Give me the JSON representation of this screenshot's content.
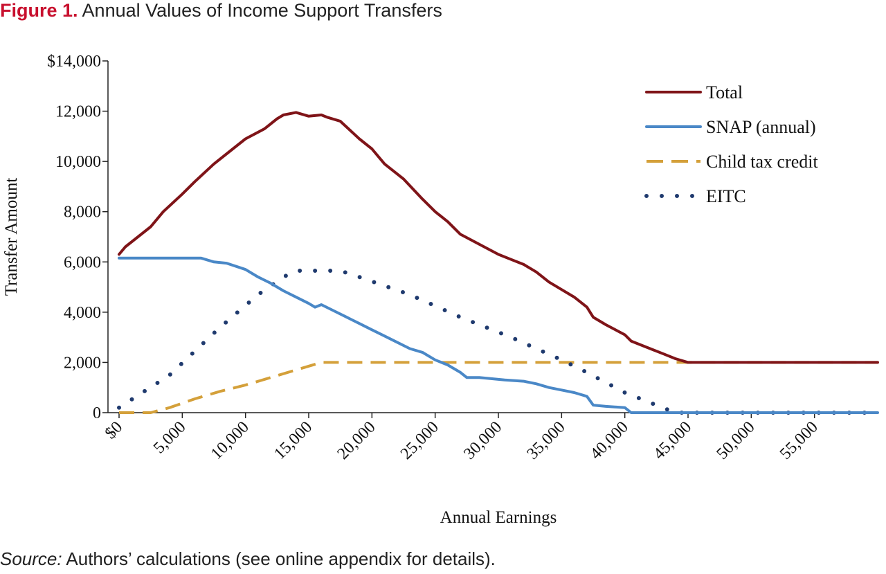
{
  "figure": {
    "label": "Figure 1.",
    "title": "Annual Values of Income Support Transfers",
    "source_lead": "Source:",
    "source_text": " Authors’ calculations (see online appendix for details)."
  },
  "chart_data": {
    "type": "line",
    "xlabel": "Annual Earnings",
    "ylabel": "Transfer Amount",
    "xlim": [
      0,
      60000
    ],
    "ylim": [
      0,
      14000
    ],
    "x_ticks": [
      0,
      5000,
      10000,
      15000,
      20000,
      25000,
      30000,
      35000,
      40000,
      45000,
      50000,
      55000
    ],
    "x_tick_labels": [
      "$0",
      "5,000",
      "10,000",
      "15,000",
      "20,000",
      "25,000",
      "30,000",
      "35,000",
      "40,000",
      "45,000",
      "50,000",
      "55,000"
    ],
    "y_ticks": [
      0,
      2000,
      4000,
      6000,
      8000,
      10000,
      12000,
      14000
    ],
    "y_tick_labels": [
      "0",
      "2,000",
      "4,000",
      "6,000",
      "8,000",
      "10,000",
      "12,000",
      "$14,000"
    ],
    "grid": false,
    "legend_position": "top-right",
    "series": [
      {
        "name": "Total",
        "color": "#7f1418",
        "style": "solid",
        "points": [
          [
            0,
            6300
          ],
          [
            500,
            6600
          ],
          [
            2500,
            7400
          ],
          [
            3500,
            8000
          ],
          [
            5000,
            8700
          ],
          [
            6000,
            9200
          ],
          [
            7500,
            9900
          ],
          [
            9000,
            10500
          ],
          [
            10000,
            10900
          ],
          [
            11500,
            11300
          ],
          [
            12500,
            11700
          ],
          [
            13000,
            11850
          ],
          [
            14000,
            11950
          ],
          [
            15000,
            11800
          ],
          [
            16000,
            11850
          ],
          [
            16500,
            11750
          ],
          [
            17500,
            11600
          ],
          [
            19000,
            10900
          ],
          [
            20000,
            10500
          ],
          [
            21000,
            9900
          ],
          [
            22500,
            9300
          ],
          [
            24000,
            8500
          ],
          [
            25000,
            8000
          ],
          [
            26000,
            7600
          ],
          [
            27000,
            7100
          ],
          [
            28500,
            6700
          ],
          [
            30000,
            6300
          ],
          [
            31000,
            6100
          ],
          [
            32000,
            5900
          ],
          [
            33000,
            5600
          ],
          [
            34000,
            5200
          ],
          [
            35000,
            4900
          ],
          [
            36000,
            4600
          ],
          [
            37000,
            4200
          ],
          [
            37500,
            3800
          ],
          [
            38500,
            3500
          ],
          [
            40000,
            3100
          ],
          [
            40500,
            2850
          ],
          [
            42000,
            2550
          ],
          [
            43000,
            2350
          ],
          [
            44000,
            2150
          ],
          [
            45000,
            2000
          ],
          [
            60000,
            2000
          ]
        ]
      },
      {
        "name": "SNAP (annual)",
        "color": "#4a88c7",
        "style": "solid",
        "points": [
          [
            0,
            6150
          ],
          [
            6500,
            6150
          ],
          [
            7500,
            6000
          ],
          [
            8500,
            5950
          ],
          [
            10000,
            5700
          ],
          [
            11000,
            5400
          ],
          [
            12000,
            5150
          ],
          [
            13000,
            4850
          ],
          [
            14000,
            4600
          ],
          [
            15000,
            4350
          ],
          [
            15500,
            4200
          ],
          [
            16000,
            4300
          ],
          [
            17000,
            4050
          ],
          [
            18000,
            3800
          ],
          [
            19000,
            3550
          ],
          [
            20000,
            3300
          ],
          [
            21000,
            3050
          ],
          [
            22000,
            2800
          ],
          [
            23000,
            2550
          ],
          [
            24000,
            2400
          ],
          [
            25000,
            2100
          ],
          [
            26000,
            1900
          ],
          [
            27000,
            1600
          ],
          [
            27500,
            1400
          ],
          [
            28500,
            1400
          ],
          [
            29500,
            1350
          ],
          [
            30500,
            1300
          ],
          [
            32000,
            1250
          ],
          [
            33000,
            1150
          ],
          [
            34000,
            1000
          ],
          [
            35000,
            900
          ],
          [
            36000,
            800
          ],
          [
            37000,
            650
          ],
          [
            37500,
            300
          ],
          [
            38500,
            250
          ],
          [
            40000,
            200
          ],
          [
            40500,
            0
          ],
          [
            60000,
            0
          ]
        ]
      },
      {
        "name": "Child tax credit",
        "color": "#d4a03a",
        "style": "dashed",
        "points": [
          [
            0,
            0
          ],
          [
            2500,
            0
          ],
          [
            4000,
            200
          ],
          [
            6000,
            550
          ],
          [
            8000,
            850
          ],
          [
            10000,
            1100
          ],
          [
            12000,
            1400
          ],
          [
            14000,
            1700
          ],
          [
            16000,
            2000
          ],
          [
            60000,
            2000
          ]
        ]
      },
      {
        "name": "EITC",
        "color": "#1f3a6e",
        "style": "dotted",
        "points": [
          [
            0,
            200
          ],
          [
            4000,
            1500
          ],
          [
            8000,
            3400
          ],
          [
            11000,
            4700
          ],
          [
            13000,
            5400
          ],
          [
            14000,
            5650
          ],
          [
            17500,
            5650
          ],
          [
            19000,
            5400
          ],
          [
            23000,
            4700
          ],
          [
            27000,
            3800
          ],
          [
            31000,
            3000
          ],
          [
            35000,
            2100
          ],
          [
            37000,
            1600
          ],
          [
            40000,
            800
          ],
          [
            42000,
            400
          ],
          [
            44000,
            0
          ],
          [
            60000,
            0
          ]
        ]
      }
    ]
  }
}
